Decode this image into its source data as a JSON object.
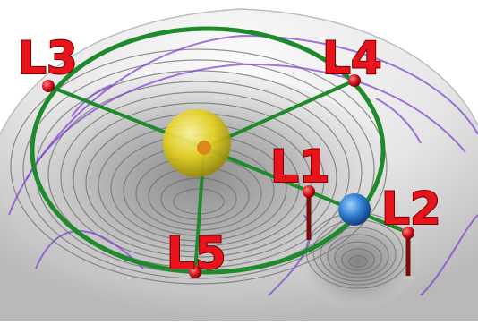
{
  "labels": {
    "l1": "L1",
    "l2": "L2",
    "l3": "L3",
    "l4": "L4",
    "l5": "L5"
  },
  "colors": {
    "label_fill": "#e8141b",
    "label_outline": "#7a0000",
    "orbit_green": "#1f8a2c",
    "surface_light": "#f2f2f2",
    "surface_dark": "#8a8a8a",
    "contour_gray": "#6e6e6e",
    "contour_purple": "#7a3fd0",
    "sun_yellow": "#e6d21c",
    "planet_blue": "#2f7fd0",
    "point_red": "#d0101a",
    "stem_dark_red": "#7a0c0c"
  },
  "icons": {
    "central_body": "yellow-sphere",
    "orbiting_body": "blue-sphere",
    "lagrange_marker": "red-dot"
  }
}
